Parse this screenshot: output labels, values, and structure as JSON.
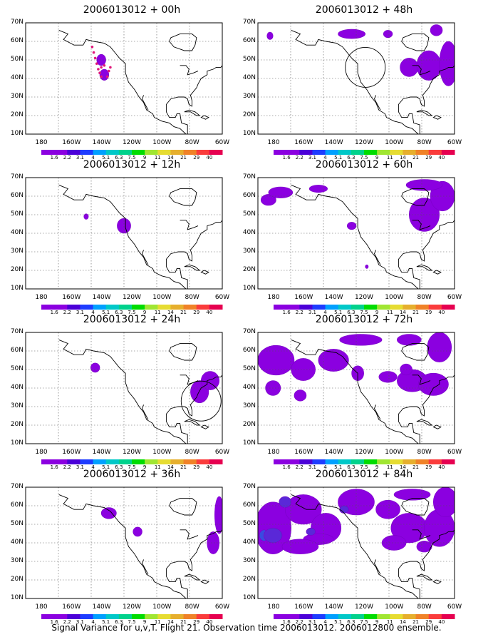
{
  "panels": [
    {
      "title": "2006013012 + 00h",
      "circle": false
    },
    {
      "title": "2006013012 + 48h",
      "circle": true
    },
    {
      "title": "2006013012 + 12h",
      "circle": false
    },
    {
      "title": "2006013012 + 60h",
      "circle": false
    },
    {
      "title": "2006013012 + 24h",
      "circle": true
    },
    {
      "title": "2006013012 + 72h",
      "circle": false
    },
    {
      "title": "2006013012 + 36h",
      "circle": false
    },
    {
      "title": "2006013012 + 84h",
      "circle": false
    }
  ],
  "lat_labels": [
    "70N",
    "60N",
    "50N",
    "40N",
    "30N",
    "20N",
    "10N"
  ],
  "lon_labels": [
    "180",
    "160W",
    "140W",
    "120W",
    "100W",
    "80W",
    "60W"
  ],
  "colorbar": {
    "labels": [
      "1.6",
      "2.2",
      "3.1",
      "4",
      "5.1",
      "6.3",
      "7.5",
      "9",
      "11",
      "14",
      "21",
      "29",
      "40"
    ],
    "colors": [
      "#8b00e0",
      "#8b00e0",
      "#4b00d8",
      "#1e3cff",
      "#00a0ff",
      "#00c8c8",
      "#00d28c",
      "#00dc00",
      "#a0e632",
      "#e6dc32",
      "#e6af2d",
      "#f08228",
      "#fa3c3c",
      "#e60050"
    ]
  },
  "caption": "Signal Variance for u,v,T. Flight 21. Observation time 2006013012. 2006012800 ensemble."
}
